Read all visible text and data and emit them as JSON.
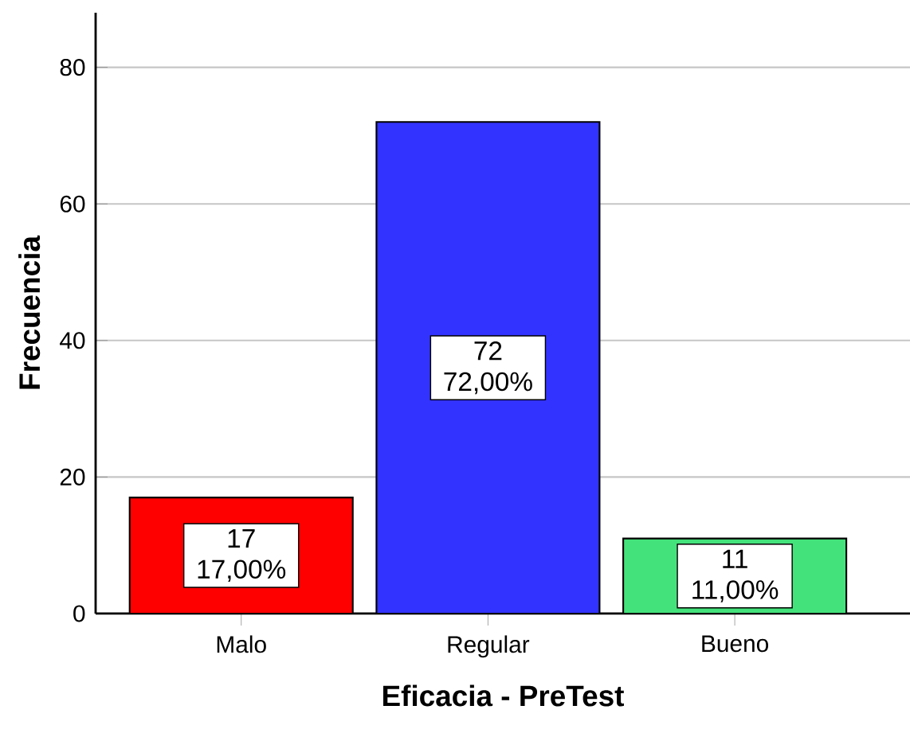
{
  "chart_data": {
    "type": "bar",
    "xlabel": "Eficacia - PreTest",
    "ylabel": "Frecuencia",
    "categories": [
      "Malo",
      "Regular",
      "Bueno"
    ],
    "values": [
      17,
      72,
      11
    ],
    "colors": [
      "#ff0000",
      "#3333ff",
      "#44e27b"
    ],
    "value_labels": [
      "17 17,00%",
      "72 72,00%",
      "11 11,00%"
    ],
    "ylim": [
      0,
      88
    ],
    "yticks": [
      0,
      20,
      40,
      60,
      80
    ],
    "grid": "y"
  }
}
